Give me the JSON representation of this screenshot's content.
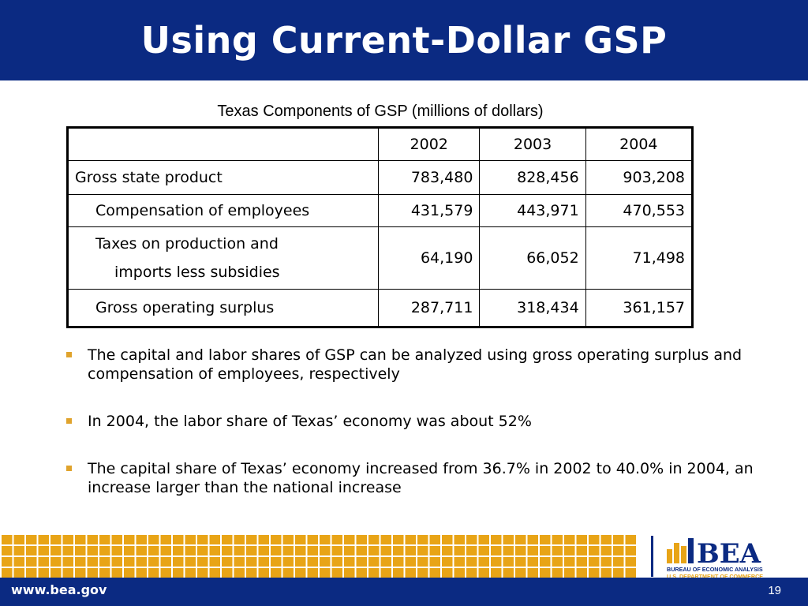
{
  "slide": {
    "title": "Using Current-Dollar GSP",
    "page_number": "19",
    "footer_url": "www.bea.gov"
  },
  "table": {
    "caption": "Texas Components of GSP (millions of dollars)",
    "header": [
      "",
      "2002",
      "2003",
      "2004"
    ],
    "rows": [
      {
        "label": "Gross state product",
        "values": [
          "783,480",
          "828,456",
          "903,208"
        ]
      },
      {
        "label": "Compensation of employees",
        "values": [
          "431,579",
          "443,971",
          "470,553"
        ]
      },
      {
        "label_line1": "Taxes on production and",
        "label_line2": "imports less subsidies",
        "values": [
          "64,190",
          "66,052",
          "71,498"
        ]
      },
      {
        "label": "Gross operating surplus",
        "values": [
          "287,711",
          "318,434",
          "361,157"
        ]
      }
    ]
  },
  "bullets": [
    "The capital and labor shares of GSP can be analyzed using gross operating surplus and compensation of employees, respectively",
    "In 2004, the labor share of Texas’ economy was about 52%",
    "The capital share of Texas’ economy increased from 36.7% in 2002 to 40.0% in 2004, an increase larger than the national increase"
  ],
  "logo": {
    "wordmark": "BEA",
    "line1": "BUREAU OF ECONOMIC ANALYSIS",
    "line2": "U.S. DEPARTMENT OF COMMERCE"
  },
  "colors": {
    "navy": "#0b2a82",
    "gold": "#e8a416",
    "bullet": "#e0a32c"
  }
}
